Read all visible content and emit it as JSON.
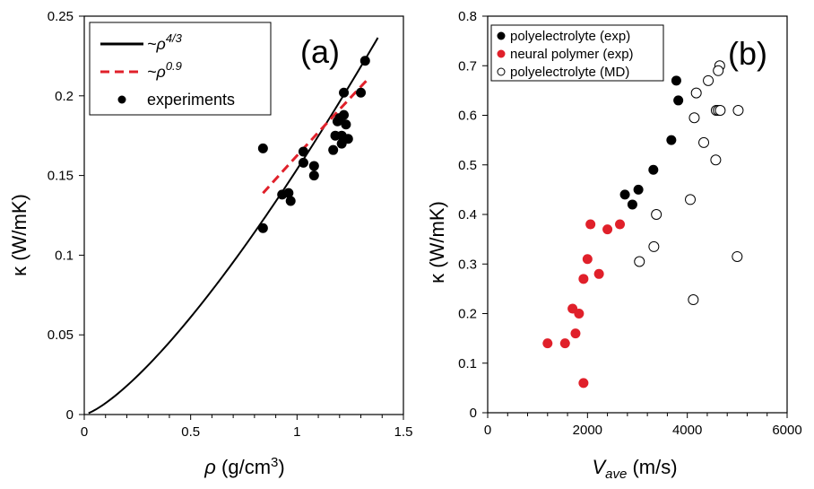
{
  "chart_data": [
    {
      "type": "scatter",
      "panel_label": "(a)",
      "xlabel": "ρ (g/cm³)",
      "xlabel_symbol": "ρ",
      "xlabel_units": " (g/cm",
      "xlabel_sup": "3",
      "xlabel_close": ")",
      "ylabel": "κ (W/mK)",
      "xlim": [
        0,
        1.5
      ],
      "ylim": [
        0,
        0.25
      ],
      "x_ticks": [
        "0",
        "0.5",
        "1",
        "1.5"
      ],
      "x_tick_values": [
        0,
        0.5,
        1,
        1.5
      ],
      "y_ticks": [
        "0",
        "0.05",
        "0.1",
        "0.15",
        "0.2",
        "0.25"
      ],
      "y_tick_values": [
        0,
        0.05,
        0.1,
        0.15,
        0.2,
        0.25
      ],
      "legend": {
        "position": "top-left",
        "entries": [
          {
            "label_prefix": "~ρ",
            "label_exp": "4/3",
            "style": "solid-line",
            "color": "#000000"
          },
          {
            "label_prefix": "~ρ",
            "label_exp": "0.9",
            "style": "dashed-line",
            "color": "#e0202a"
          },
          {
            "label": "experiments",
            "style": "filled-circle",
            "color": "#000000"
          }
        ]
      },
      "series": [
        {
          "name": "experiments",
          "marker": "filled-circle",
          "color": "#000000",
          "points": [
            [
              0.84,
              0.167
            ],
            [
              0.84,
              0.117
            ],
            [
              0.93,
              0.138
            ],
            [
              0.96,
              0.139
            ],
            [
              0.97,
              0.134
            ],
            [
              1.03,
              0.165
            ],
            [
              1.03,
              0.158
            ],
            [
              1.08,
              0.15
            ],
            [
              1.08,
              0.156
            ],
            [
              1.17,
              0.166
            ],
            [
              1.18,
              0.175
            ],
            [
              1.19,
              0.184
            ],
            [
              1.2,
              0.186
            ],
            [
              1.21,
              0.175
            ],
            [
              1.21,
              0.17
            ],
            [
              1.22,
              0.188
            ],
            [
              1.22,
              0.202
            ],
            [
              1.23,
              0.182
            ],
            [
              1.24,
              0.173
            ],
            [
              1.3,
              0.202
            ],
            [
              1.32,
              0.222
            ]
          ]
        },
        {
          "name": "~ρ^4/3 fit",
          "type": "line",
          "style": "solid",
          "color": "#000000",
          "function": "0.1539 * x^(4/3)",
          "x_range": [
            0.02,
            1.38
          ]
        },
        {
          "name": "~ρ^0.9 fit",
          "type": "line",
          "style": "dashed",
          "color": "#e0202a",
          "function": "0.1625 * x^0.9",
          "x_range": [
            0.84,
            1.34
          ]
        }
      ]
    },
    {
      "type": "scatter",
      "panel_label": "(b)",
      "xlabel": "V_ave (m/s)",
      "xlabel_main": "V",
      "xlabel_sub": "ave",
      "xlabel_units": " (m/s)",
      "ylabel": "κ (W/mK)",
      "xlim": [
        0,
        6000
      ],
      "ylim": [
        0,
        0.8
      ],
      "x_ticks": [
        "0",
        "2000",
        "4000",
        "6000"
      ],
      "x_tick_values": [
        0,
        2000,
        4000,
        6000
      ],
      "y_ticks": [
        "0",
        "0.1",
        "0.2",
        "0.3",
        "0.4",
        "0.5",
        "0.6",
        "0.7",
        "0.8"
      ],
      "y_tick_values": [
        0,
        0.1,
        0.2,
        0.3,
        0.4,
        0.5,
        0.6,
        0.7,
        0.8
      ],
      "legend": {
        "position": "top-left",
        "entries": [
          {
            "label": "polyelectrolyte (exp)",
            "style": "filled-circle",
            "color": "#000000"
          },
          {
            "label": "neural polymer (exp)",
            "style": "filled-circle",
            "color": "#e0202a"
          },
          {
            "label": "polyelectrolyte (MD)",
            "style": "open-circle",
            "color": "#000000"
          }
        ]
      },
      "series": [
        {
          "name": "polyelectrolyte (exp)",
          "marker": "filled-circle",
          "color": "#000000",
          "points": [
            [
              3780,
              0.67
            ],
            [
              3820,
              0.63
            ],
            [
              3680,
              0.55
            ],
            [
              3320,
              0.49
            ],
            [
              3020,
              0.45
            ],
            [
              2750,
              0.44
            ],
            [
              2900,
              0.42
            ]
          ]
        },
        {
          "name": "neural polymer (exp)",
          "marker": "filled-circle",
          "color": "#e0202a",
          "points": [
            [
              2060,
              0.38
            ],
            [
              2400,
              0.37
            ],
            [
              2650,
              0.38
            ],
            [
              2000,
              0.31
            ],
            [
              2230,
              0.28
            ],
            [
              1920,
              0.27
            ],
            [
              1700,
              0.21
            ],
            [
              1830,
              0.2
            ],
            [
              1760,
              0.16
            ],
            [
              1200,
              0.14
            ],
            [
              1550,
              0.14
            ],
            [
              1920,
              0.06
            ]
          ]
        },
        {
          "name": "polyelectrolyte (MD)",
          "marker": "open-circle",
          "color": "#000000",
          "points": [
            [
              4650,
              0.7
            ],
            [
              4620,
              0.69
            ],
            [
              4420,
              0.67
            ],
            [
              4180,
              0.645
            ],
            [
              4140,
              0.595
            ],
            [
              4580,
              0.61
            ],
            [
              4620,
              0.61
            ],
            [
              4660,
              0.61
            ],
            [
              5020,
              0.61
            ],
            [
              4330,
              0.545
            ],
            [
              4570,
              0.51
            ],
            [
              4060,
              0.43
            ],
            [
              3380,
              0.4
            ],
            [
              3330,
              0.335
            ],
            [
              3040,
              0.305
            ],
            [
              5000,
              0.315
            ],
            [
              4120,
              0.228
            ]
          ]
        }
      ]
    }
  ]
}
